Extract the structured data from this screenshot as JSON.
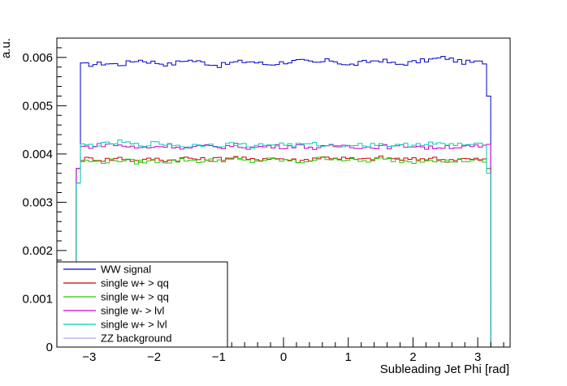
{
  "chart_data": {
    "type": "line",
    "style": "step-histogram",
    "title": "",
    "xlabel": "Subleading Jet Phi [rad]",
    "ylabel": "a.u.",
    "xlim": [
      -3.5,
      3.5
    ],
    "ylim": [
      0,
      0.0064
    ],
    "xticks": [
      -3,
      -2,
      -1,
      0,
      1,
      2,
      3
    ],
    "xtick_labels": [
      "−3",
      "−2",
      "−1",
      "0",
      "1",
      "2",
      "3"
    ],
    "yticks": [
      0,
      0.001,
      0.002,
      0.003,
      0.004,
      0.005,
      0.006
    ],
    "ytick_labels": [
      "0",
      "0.001",
      "0.002",
      "0.003",
      "0.004",
      "0.005",
      "0.006"
    ],
    "grid": false,
    "legend_position": "bottom-left",
    "x_range_filled": [
      -3.2,
      3.2
    ],
    "series": [
      {
        "name": "WW signal",
        "color": "#0000cc",
        "edges": [
          0.0037,
          0.0052
        ],
        "x": [
          -3.0,
          -2.75,
          -2.5,
          -2.25,
          -2.0,
          -1.75,
          -1.5,
          -1.25,
          -1.0,
          -0.75,
          -0.5,
          -0.25,
          0.0,
          0.25,
          0.5,
          0.75,
          1.0,
          1.25,
          1.5,
          1.75,
          2.0,
          2.25,
          2.5,
          2.75,
          3.0
        ],
        "values": [
          0.00585,
          0.00588,
          0.00585,
          0.00595,
          0.0059,
          0.00585,
          0.00595,
          0.0059,
          0.00583,
          0.0059,
          0.00592,
          0.00585,
          0.0059,
          0.00593,
          0.00588,
          0.00595,
          0.00583,
          0.0059,
          0.00595,
          0.00585,
          0.0059,
          0.00595,
          0.006,
          0.0059,
          0.0059
        ]
      },
      {
        "name": "single w+ > qq",
        "color": "#cc0000",
        "edges": [
          0.0034,
          0.0037
        ],
        "x": [
          -3.0,
          -2.75,
          -2.5,
          -2.25,
          -2.0,
          -1.75,
          -1.5,
          -1.25,
          -1.0,
          -0.75,
          -0.5,
          -0.25,
          0.0,
          0.25,
          0.5,
          0.75,
          1.0,
          1.25,
          1.5,
          1.75,
          2.0,
          2.25,
          2.5,
          2.75,
          3.0
        ],
        "values": [
          0.0039,
          0.00388,
          0.00392,
          0.00385,
          0.0039,
          0.00387,
          0.00392,
          0.00388,
          0.0039,
          0.00393,
          0.00387,
          0.00392,
          0.0039,
          0.00385,
          0.00392,
          0.00393,
          0.0039,
          0.00388,
          0.00392,
          0.0039,
          0.00388,
          0.00392,
          0.00387,
          0.0039,
          0.00388
        ]
      },
      {
        "name": "single w+ > qq",
        "color": "#22cc00",
        "edges": [
          0.0034,
          0.0037
        ],
        "x": [
          -3.0,
          -2.75,
          -2.5,
          -2.25,
          -2.0,
          -1.75,
          -1.5,
          -1.25,
          -1.0,
          -0.75,
          -0.5,
          -0.25,
          0.0,
          0.25,
          0.5,
          0.75,
          1.0,
          1.25,
          1.5,
          1.75,
          2.0,
          2.25,
          2.5,
          2.75,
          3.0
        ],
        "values": [
          0.00385,
          0.00384,
          0.00388,
          0.00383,
          0.00386,
          0.00384,
          0.00388,
          0.00385,
          0.00387,
          0.0039,
          0.00384,
          0.00388,
          0.00387,
          0.00383,
          0.00389,
          0.00392,
          0.00387,
          0.00385,
          0.00389,
          0.00387,
          0.00384,
          0.0039,
          0.00384,
          0.00387,
          0.00385
        ]
      },
      {
        "name": "single w- > lvl",
        "color": "#cc00cc",
        "edges": [
          0.0037,
          0.0042
        ],
        "x": [
          -3.0,
          -2.75,
          -2.5,
          -2.25,
          -2.0,
          -1.75,
          -1.5,
          -1.25,
          -1.0,
          -0.75,
          -0.5,
          -0.25,
          0.0,
          0.25,
          0.5,
          0.75,
          1.0,
          1.25,
          1.5,
          1.75,
          2.0,
          2.25,
          2.5,
          2.75,
          3.0
        ],
        "values": [
          0.00415,
          0.0042,
          0.00418,
          0.00412,
          0.00415,
          0.00418,
          0.00412,
          0.00416,
          0.00414,
          0.00418,
          0.00413,
          0.00416,
          0.00415,
          0.00418,
          0.00412,
          0.00415,
          0.00418,
          0.00413,
          0.00416,
          0.00414,
          0.00418,
          0.00412,
          0.00416,
          0.00414,
          0.00415
        ]
      },
      {
        "name": "single w+ > lvl",
        "color": "#00ccbb",
        "edges": [
          0.0034,
          0.0036
        ],
        "x": [
          -3.0,
          -2.75,
          -2.5,
          -2.25,
          -2.0,
          -1.75,
          -1.5,
          -1.25,
          -1.0,
          -0.75,
          -0.5,
          -0.25,
          0.0,
          0.25,
          0.5,
          0.75,
          1.0,
          1.25,
          1.5,
          1.75,
          2.0,
          2.25,
          2.5,
          2.75,
          3.0
        ],
        "values": [
          0.00418,
          0.0042,
          0.00425,
          0.00418,
          0.00422,
          0.0042,
          0.00415,
          0.0042,
          0.00418,
          0.00421,
          0.00416,
          0.00419,
          0.0042,
          0.00418,
          0.0042,
          0.00417,
          0.0042,
          0.00418,
          0.00421,
          0.00416,
          0.0042,
          0.00423,
          0.00418,
          0.0042,
          0.00418
        ]
      },
      {
        "name": "ZZ background",
        "color": "#aaaaee",
        "edges": [
          0,
          0
        ],
        "x": [],
        "values": []
      }
    ]
  }
}
